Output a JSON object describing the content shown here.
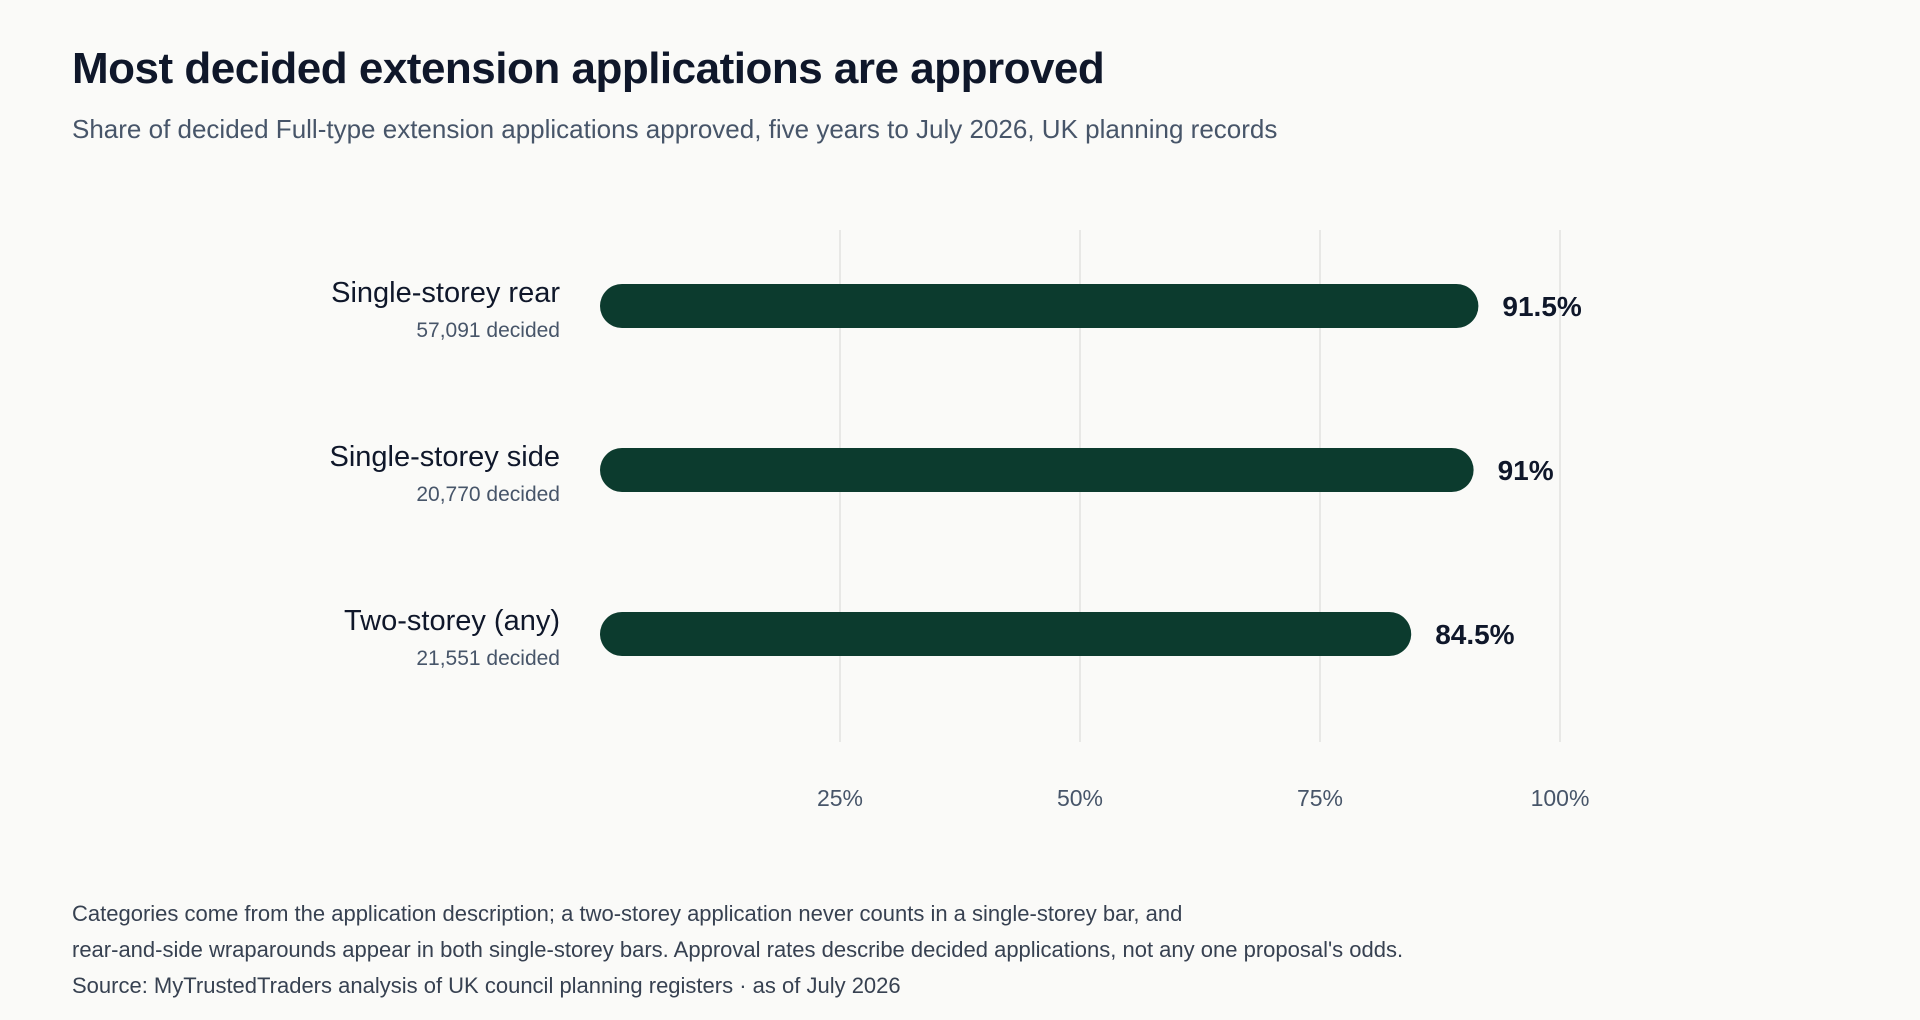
{
  "title": "Most decided extension applications are approved",
  "subtitle": "Share of decided Full-type extension applications approved, five years to July 2026, UK planning records",
  "chart_data": {
    "type": "bar",
    "orientation": "horizontal",
    "categories": [
      "Single-storey rear",
      "Single-storey side",
      "Two-storey (any)"
    ],
    "category_subtitles": [
      "57,091 decided",
      "20,770 decided",
      "21,551 decided"
    ],
    "values": [
      91.5,
      91,
      84.5
    ],
    "value_labels": [
      "91.5%",
      "91%",
      "84.5%"
    ],
    "xlim": [
      0,
      100
    ],
    "xticks": [
      25,
      50,
      75,
      100
    ],
    "xtick_labels": [
      "25%",
      "50%",
      "75%",
      "100%"
    ],
    "grid": true,
    "bar_color": "#0c3b2e",
    "title": "Most decided extension applications are approved",
    "xlabel": "",
    "ylabel": ""
  },
  "footnote": {
    "line1": "Categories come from the application description; a two-storey application never counts in a single-storey bar, and",
    "line2": "rear-and-side wraparounds appear in both single-storey bars. Approval rates describe decided applications, not any one proposal's odds.",
    "line3": "Source: MyTrustedTraders analysis of UK council planning registers  ·  as of July 2026"
  }
}
